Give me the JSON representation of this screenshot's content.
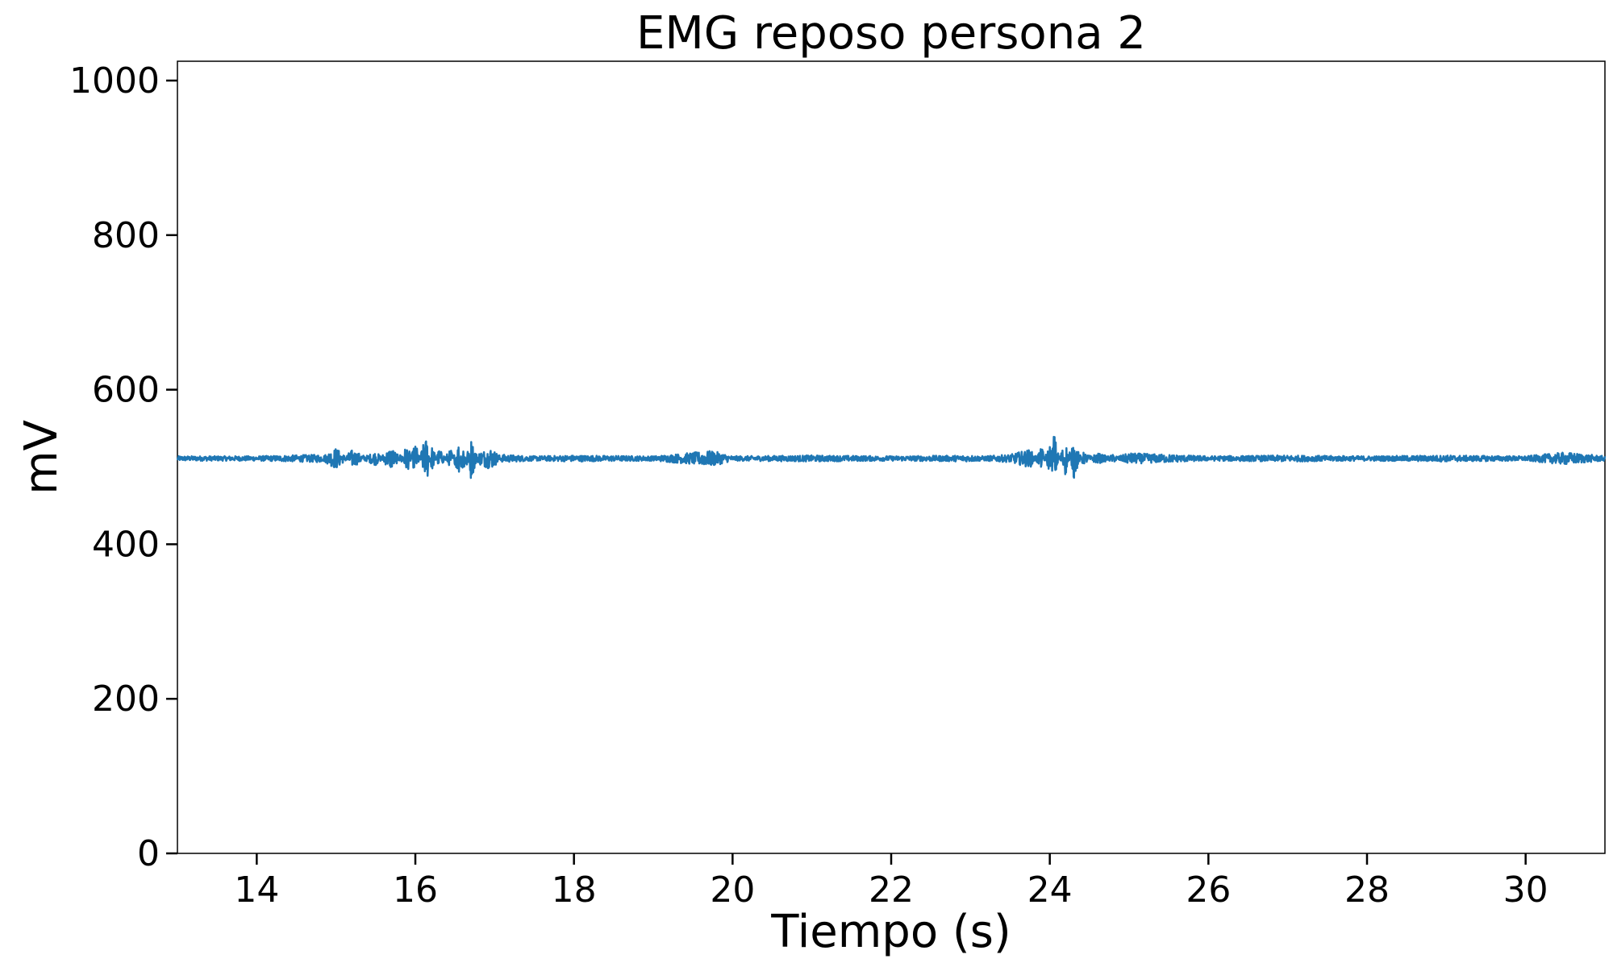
{
  "chart_data": {
    "type": "line",
    "title": "EMG reposo persona 2",
    "xlabel": "Tiempo (s)",
    "ylabel": "mV",
    "xlim": [
      13.0,
      31.0
    ],
    "ylim": [
      0,
      1025
    ],
    "xticks": [
      14,
      16,
      18,
      20,
      22,
      24,
      26,
      28,
      30
    ],
    "yticks": [
      0,
      200,
      400,
      600,
      800,
      1000
    ],
    "grid": false,
    "legend": "none",
    "series": [
      {
        "color": "#1f77b4",
        "baseline": 511,
        "x": [
          13.0,
          14.0,
          14.8,
          15.0,
          15.2,
          15.5,
          15.7,
          15.9,
          16.0,
          16.1,
          16.15,
          16.2,
          16.3,
          16.45,
          16.55,
          16.6,
          16.65,
          16.7,
          16.8,
          16.95,
          17.1,
          17.5,
          18.0,
          19.0,
          19.75,
          20.0,
          21.0,
          22.0,
          23.0,
          23.5,
          23.75,
          23.9,
          24.0,
          24.05,
          24.1,
          24.2,
          24.25,
          24.3,
          24.4,
          24.6,
          24.8,
          25.0,
          26.0,
          27.0,
          28.0,
          29.0,
          30.0,
          30.5,
          31.0
        ],
        "y": [
          511,
          511,
          513,
          500,
          519,
          505,
          523,
          497,
          528,
          496,
          484,
          526,
          502,
          520,
          492,
          537,
          495,
          535,
          506,
          500,
          513,
          511,
          510,
          511,
          518,
          511,
          510,
          511,
          510,
          513,
          520,
          500,
          527,
          478,
          505,
          531,
          500,
          535,
          505,
          515,
          509,
          515,
          511,
          510,
          511,
          510,
          511,
          516,
          511
        ],
        "noise_amplitude_mV": 3
      }
    ]
  }
}
